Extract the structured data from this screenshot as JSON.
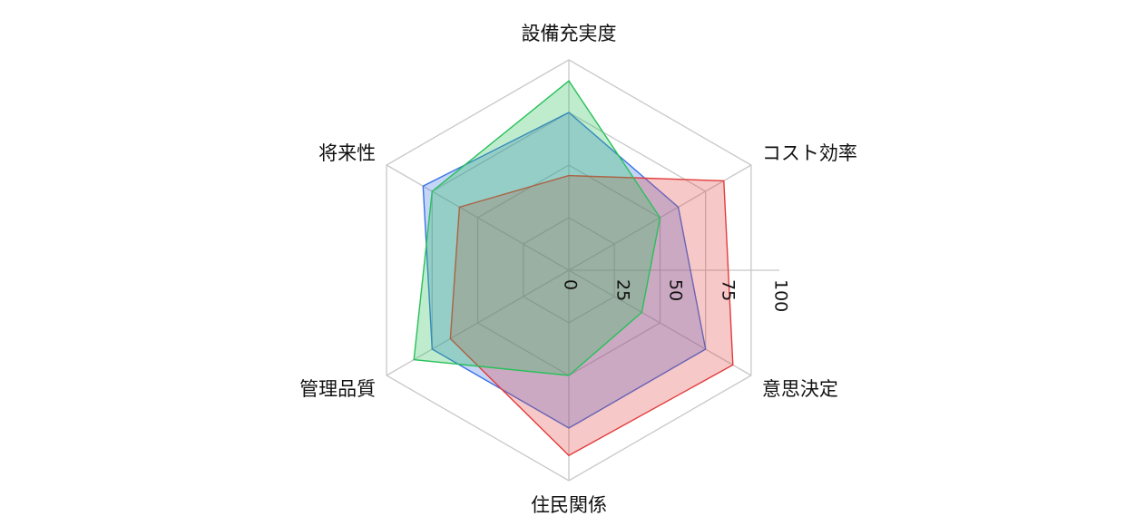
{
  "chart_data": {
    "type": "radar",
    "axes": [
      "設備充実度",
      "コスト効率",
      "意思決定",
      "住民関係",
      "管理品質",
      "将来性"
    ],
    "range": [
      0,
      100
    ],
    "ticks": [
      0,
      25,
      50,
      75,
      100
    ],
    "tick_labels": [
      "0",
      "25",
      "50",
      "75",
      "100"
    ],
    "grid": true,
    "series": [
      {
        "values": [
          75,
          60,
          75,
          75,
          75,
          80
        ],
        "color": "#3b74e6",
        "fill": "rgba(59,116,230,0.30)"
      },
      {
        "values": [
          45,
          85,
          90,
          88,
          65,
          60
        ],
        "color": "#e23b3b",
        "fill": "rgba(226,59,59,0.28)"
      },
      {
        "values": [
          90,
          50,
          40,
          50,
          85,
          75
        ],
        "color": "#27c05a",
        "fill": "rgba(39,192,90,0.30)"
      }
    ]
  }
}
